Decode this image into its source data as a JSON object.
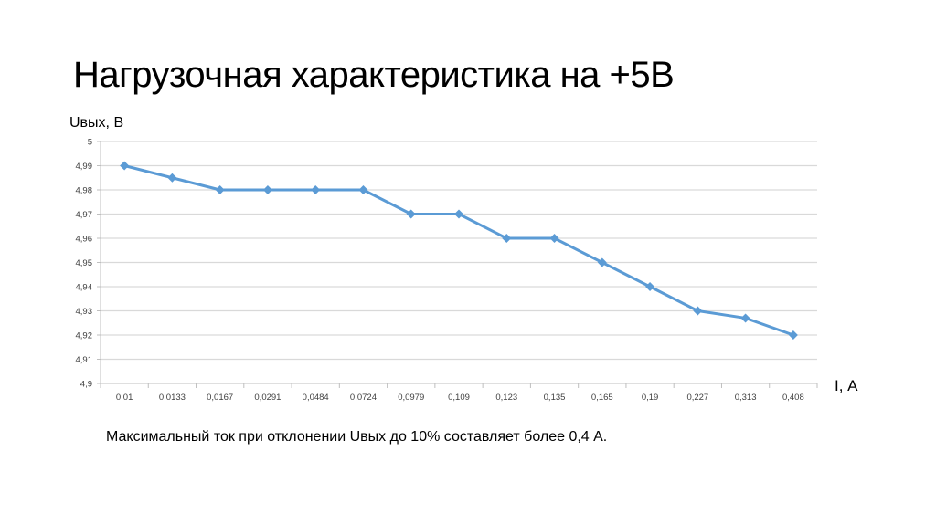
{
  "title": "Нагрузочная характеристика на +5В",
  "caption": "Максимальный ток при отклонении Uвых до 10% составляет более 0,4 А.",
  "chart_data": {
    "type": "line",
    "title": "Нагрузочная характеристика на +5В",
    "xlabel": "I, А",
    "ylabel": "Uвых, В",
    "categories": [
      "0,01",
      "0,0133",
      "0,0167",
      "0,0291",
      "0,0484",
      "0,0724",
      "0,0979",
      "0,109",
      "0,123",
      "0,135",
      "0,165",
      "0,19",
      "0,227",
      "0,313",
      "0,408"
    ],
    "series": [
      {
        "name": "Uвых",
        "values": [
          4.99,
          4.985,
          4.98,
          4.98,
          4.98,
          4.98,
          4.97,
          4.97,
          4.96,
          4.96,
          4.95,
          4.94,
          4.93,
          4.927,
          4.92
        ]
      }
    ],
    "ylim": [
      4.9,
      5.0
    ],
    "yticks": [
      "4,9",
      "4,91",
      "4,92",
      "4,93",
      "4,94",
      "4,95",
      "4,96",
      "4,97",
      "4,98",
      "4,99",
      "5"
    ],
    "grid": true,
    "color": "#5b9bd5",
    "marker": "diamond"
  }
}
